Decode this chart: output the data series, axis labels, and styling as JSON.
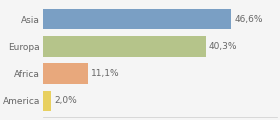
{
  "categories": [
    "Asia",
    "Europa",
    "Africa",
    "America"
  ],
  "values": [
    46.6,
    40.3,
    11.1,
    2.0
  ],
  "labels": [
    "46,6%",
    "40,3%",
    "11,1%",
    "2,0%"
  ],
  "bar_colors": [
    "#7a9fc4",
    "#b5c48a",
    "#e8a87c",
    "#e8d060"
  ],
  "background_color": "#f5f5f5",
  "xlim": [
    0,
    58
  ],
  "bar_height": 0.75,
  "label_fontsize": 6.5,
  "tick_fontsize": 6.5,
  "text_color": "#666666"
}
